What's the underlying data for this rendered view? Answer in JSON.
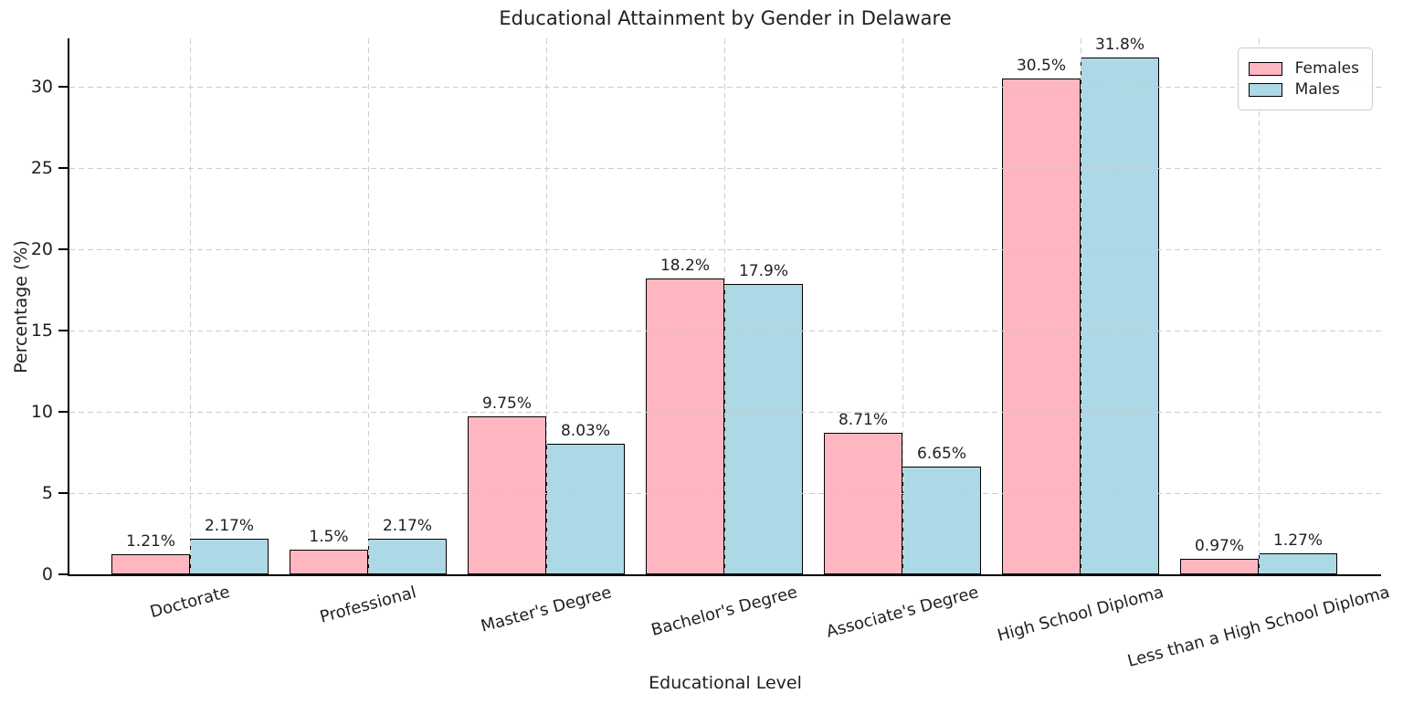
{
  "chart_data": {
    "type": "bar",
    "title": "Educational Attainment by Gender in Delaware",
    "xlabel": "Educational Level",
    "ylabel": "Percentage (%)",
    "categories": [
      "Doctorate",
      "Professional",
      "Master's Degree",
      "Bachelor's Degree",
      "Associate's Degree",
      "High School Diploma",
      "Less than a High School Diploma"
    ],
    "series": [
      {
        "name": "Females",
        "color": "#ffb6c1",
        "edge_color": "#000000",
        "values": [
          1.21,
          1.5,
          9.75,
          18.2,
          8.71,
          30.5,
          0.97
        ],
        "value_labels": [
          "1.21%",
          "1.5%",
          "9.75%",
          "18.2%",
          "8.71%",
          "30.5%",
          "0.97%"
        ]
      },
      {
        "name": "Males",
        "color": "#add8e6",
        "edge_color": "#000000",
        "values": [
          2.17,
          2.17,
          8.03,
          17.9,
          6.65,
          31.8,
          1.27
        ],
        "value_labels": [
          "2.17%",
          "2.17%",
          "8.03%",
          "17.9%",
          "6.65%",
          "31.8%",
          "1.27%"
        ]
      }
    ],
    "ylim": [
      0,
      33
    ],
    "yticks": [
      0,
      5,
      10,
      15,
      20,
      25,
      30
    ],
    "grid": true,
    "grid_style": "dashed",
    "legend_position": "upper right",
    "grid_color": "#cdcdcd",
    "text_color": "#1f1f1f"
  }
}
